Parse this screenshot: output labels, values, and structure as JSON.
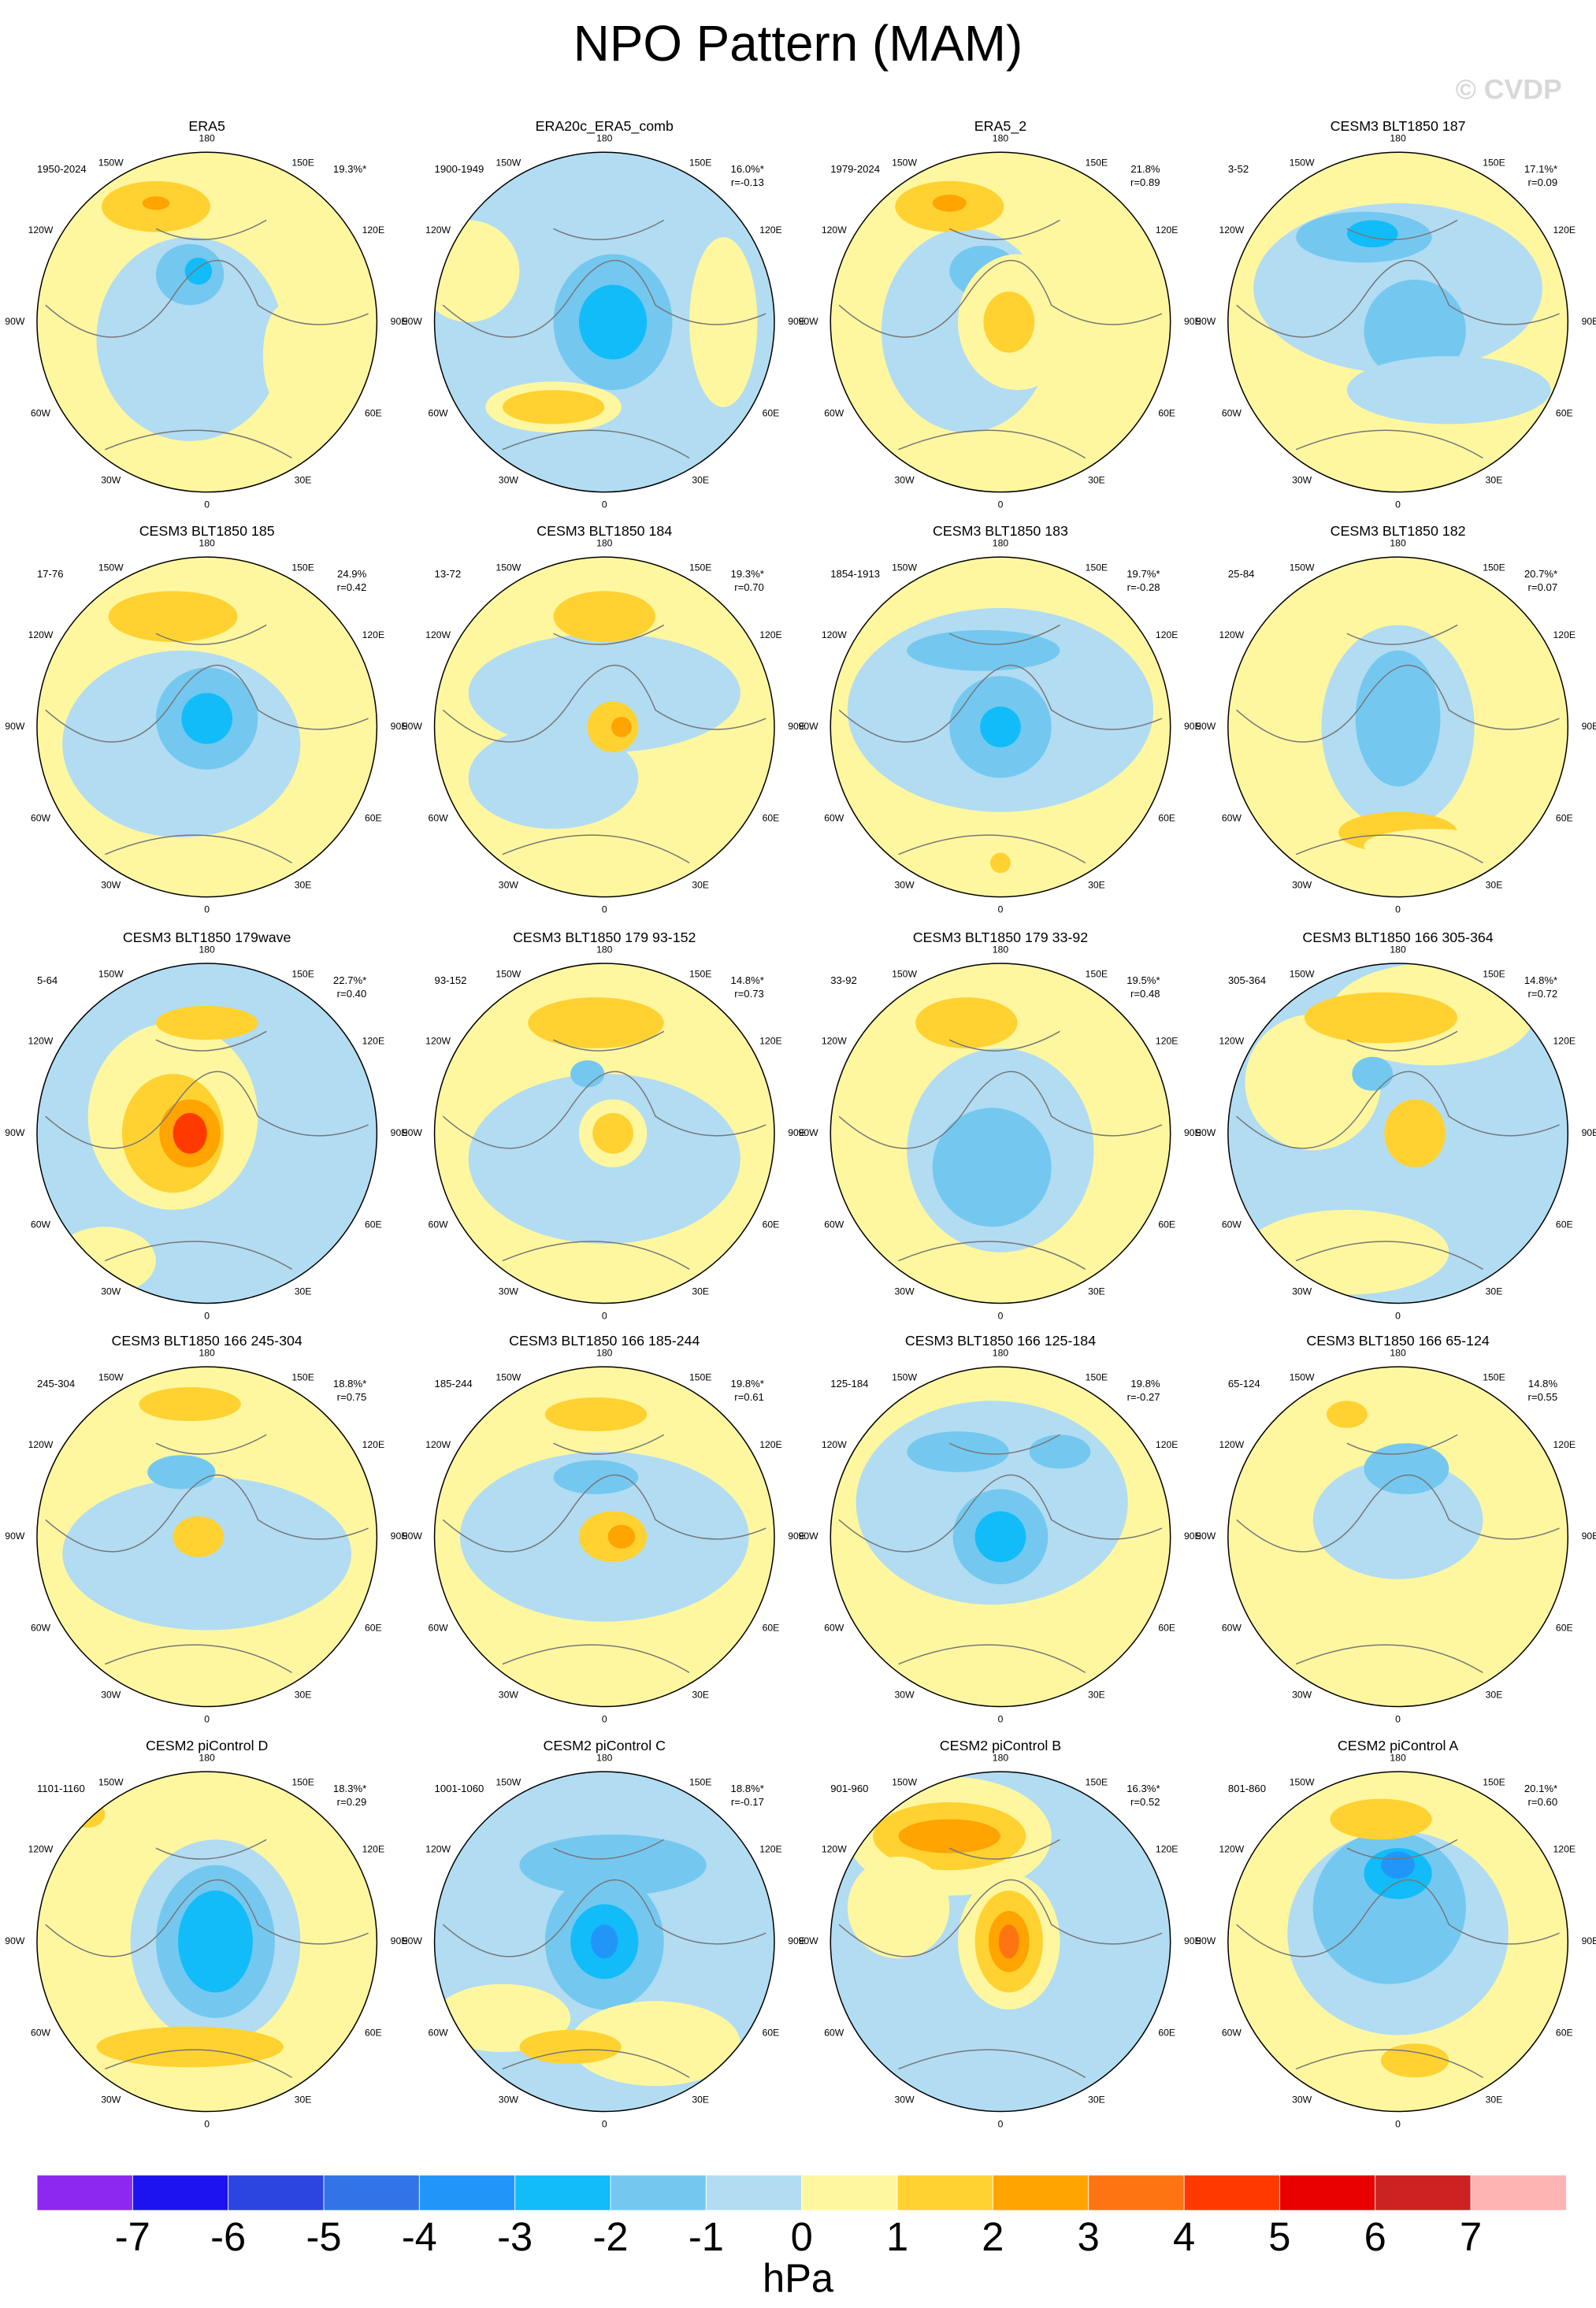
{
  "title": "NPO Pattern (MAM)",
  "watermark": "© CVDP",
  "lon_labels": [
    "180",
    "150E",
    "120E",
    "90E",
    "60E",
    "30E",
    "0",
    "30W",
    "60W",
    "90W",
    "120W",
    "150W"
  ],
  "panels": [
    {
      "title": "ERA5",
      "period": "1950-2024",
      "pct": "19.3%*"
    },
    {
      "title": "ERA20c_ERA5_comb",
      "period": "1900-1949",
      "pct": "16.0%*",
      "r": "r=-0.13"
    },
    {
      "title": "ERA5_2",
      "period": "1979-2024",
      "pct": "21.8%",
      "r": "r=0.89"
    },
    {
      "title": "CESM3 BLT1850 187",
      "period": "3-52",
      "pct": "17.1%*",
      "r": "r=0.09"
    },
    {
      "title": "CESM3 BLT1850 185",
      "period": "17-76",
      "pct": "24.9%",
      "r": "r=0.42"
    },
    {
      "title": "CESM3 BLT1850 184",
      "period": "13-72",
      "pct": "19.3%*",
      "r": "r=0.70"
    },
    {
      "title": "CESM3 BLT1850 183",
      "period": "1854-1913",
      "pct": "19.7%*",
      "r": "r=-0.28"
    },
    {
      "title": "CESM3 BLT1850 182",
      "period": "25-84",
      "pct": "20.7%*",
      "r": "r=0.07"
    },
    {
      "title": "CESM3 BLT1850 179wave",
      "period": "5-64",
      "pct": "22.7%*",
      "r": "r=0.40"
    },
    {
      "title": "CESM3 BLT1850 179 93-152",
      "period": "93-152",
      "pct": "14.8%*",
      "r": "r=0.73"
    },
    {
      "title": "CESM3 BLT1850 179 33-92",
      "period": "33-92",
      "pct": "19.5%*",
      "r": "r=0.48"
    },
    {
      "title": "CESM3 BLT1850 166 305-364",
      "period": "305-364",
      "pct": "14.8%*",
      "r": "r=0.72"
    },
    {
      "title": "CESM3 BLT1850 166 245-304",
      "period": "245-304",
      "pct": "18.8%*",
      "r": "r=0.75"
    },
    {
      "title": "CESM3 BLT1850 166 185-244",
      "period": "185-244",
      "pct": "19.8%*",
      "r": "r=0.61"
    },
    {
      "title": "CESM3 BLT1850 166 125-184",
      "period": "125-184",
      "pct": "19.8%",
      "r": "r=-0.27"
    },
    {
      "title": "CESM3 BLT1850 166 65-124",
      "period": "65-124",
      "pct": "14.8%",
      "r": "r=0.55"
    },
    {
      "title": "CESM2 piControl D",
      "period": "1101-1160",
      "pct": "18.3%*",
      "r": "r=0.29"
    },
    {
      "title": "CESM2 piControl C",
      "period": "1001-1060",
      "pct": "18.8%*",
      "r": "r=-0.17"
    },
    {
      "title": "CESM2 piControl B",
      "period": "901-960",
      "pct": "16.3%*",
      "r": "r=0.52"
    },
    {
      "title": "CESM2 piControl A",
      "period": "801-860",
      "pct": "20.1%*",
      "r": "r=0.60"
    }
  ],
  "colorbar": {
    "colors": [
      "#8c28f0",
      "#1c14f0",
      "#2c44e0",
      "#3274e8",
      "#2296f8",
      "#12bcf8",
      "#74c8f0",
      "#b2dcf2",
      "#fff7a0",
      "#ffd232",
      "#ffa400",
      "#ff7412",
      "#ff3a00",
      "#e80000",
      "#cc2222",
      "#ffb4b4"
    ],
    "ticks": [
      -7,
      -6,
      -5,
      -4,
      -3,
      -2,
      -1,
      0,
      1,
      2,
      3,
      4,
      5,
      6,
      7
    ],
    "label": "hPa"
  }
}
